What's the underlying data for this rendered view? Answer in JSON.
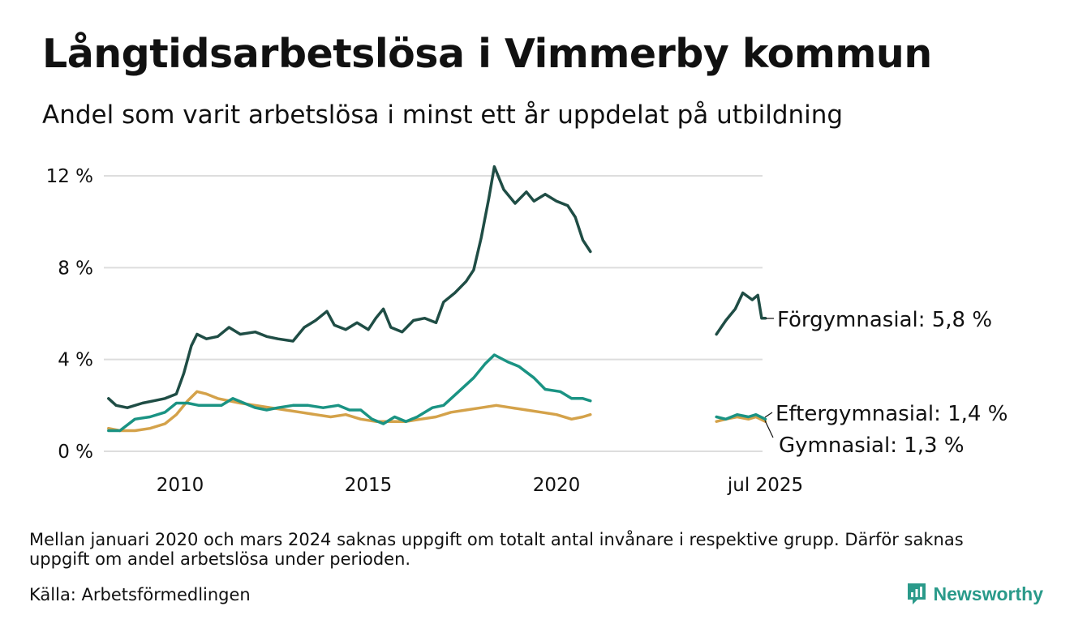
{
  "header": {
    "title": "Långtidsarbetslösa i Vimmerby kommun",
    "subtitle": "Andel som varit arbetslösa i minst ett år uppdelat på utbildning"
  },
  "footer": {
    "note": "Mellan januari 2020 och mars 2024 saknas uppgift om totalt antal invånare i respektive grupp. Därför saknas uppgift om andel arbetslösa under perioden.",
    "source": "Källa: Arbetsförmedlingen",
    "brand": "Newsworthy"
  },
  "colors": {
    "forgymnasial": "#1f4d45",
    "eftergymnasial": "#1a9383",
    "gymnasial": "#d4a24a",
    "grid": "#dddddd",
    "text": "#111111"
  },
  "chart_data": {
    "type": "line",
    "x_ticks": [
      "2010",
      "2015",
      "2020",
      "jul 2025"
    ],
    "y_ticks": [
      "0 %",
      "4 %",
      "8 %",
      "12 %"
    ],
    "ylim": [
      0,
      12
    ],
    "grid": true,
    "series": [
      {
        "name": "Förgymnasial",
        "label": "Förgymnasial: 5,8 %",
        "segments": [
          [
            [
              2008.1,
              2.3
            ],
            [
              2008.3,
              2.0
            ],
            [
              2008.6,
              1.9
            ],
            [
              2009.0,
              2.1
            ],
            [
              2009.3,
              2.2
            ],
            [
              2009.6,
              2.3
            ],
            [
              2009.9,
              2.5
            ],
            [
              2010.1,
              3.4
            ],
            [
              2010.3,
              4.6
            ],
            [
              2010.45,
              5.1
            ],
            [
              2010.7,
              4.9
            ],
            [
              2011.0,
              5.0
            ],
            [
              2011.3,
              5.4
            ],
            [
              2011.6,
              5.1
            ],
            [
              2012.0,
              5.2
            ],
            [
              2012.3,
              5.0
            ],
            [
              2012.6,
              4.9
            ],
            [
              2013.0,
              4.8
            ],
            [
              2013.3,
              5.4
            ],
            [
              2013.6,
              5.7
            ],
            [
              2013.9,
              6.1
            ],
            [
              2014.1,
              5.5
            ],
            [
              2014.4,
              5.3
            ],
            [
              2014.7,
              5.6
            ],
            [
              2015.0,
              5.3
            ],
            [
              2015.2,
              5.8
            ],
            [
              2015.4,
              6.2
            ],
            [
              2015.6,
              5.4
            ],
            [
              2015.9,
              5.2
            ],
            [
              2016.2,
              5.7
            ],
            [
              2016.5,
              5.8
            ],
            [
              2016.8,
              5.6
            ],
            [
              2017.0,
              6.5
            ],
            [
              2017.3,
              6.9
            ],
            [
              2017.6,
              7.4
            ],
            [
              2017.8,
              7.9
            ],
            [
              2018.0,
              9.3
            ],
            [
              2018.2,
              11.0
            ],
            [
              2018.35,
              12.4
            ],
            [
              2018.6,
              11.4
            ],
            [
              2018.9,
              10.8
            ],
            [
              2019.2,
              11.3
            ],
            [
              2019.4,
              10.9
            ],
            [
              2019.7,
              11.2
            ],
            [
              2020.0,
              10.9
            ],
            [
              2020.3,
              10.7
            ],
            [
              2020.5,
              10.2
            ],
            [
              2020.7,
              9.2
            ],
            [
              2020.9,
              8.7
            ]
          ],
          [
            [
              2024.25,
              5.1
            ],
            [
              2024.5,
              5.7
            ],
            [
              2024.75,
              6.2
            ],
            [
              2024.95,
              6.9
            ],
            [
              2025.2,
              6.6
            ],
            [
              2025.35,
              6.8
            ],
            [
              2025.45,
              5.8
            ],
            [
              2025.55,
              5.8
            ]
          ]
        ]
      },
      {
        "name": "Eftergymnasial",
        "label": "Eftergymnasial: 1,4 %",
        "segments": [
          [
            [
              2008.1,
              0.9
            ],
            [
              2008.4,
              0.9
            ],
            [
              2008.8,
              1.4
            ],
            [
              2009.2,
              1.5
            ],
            [
              2009.6,
              1.7
            ],
            [
              2009.9,
              2.1
            ],
            [
              2010.2,
              2.1
            ],
            [
              2010.5,
              2.0
            ],
            [
              2010.8,
              2.0
            ],
            [
              2011.1,
              2.0
            ],
            [
              2011.4,
              2.3
            ],
            [
              2011.7,
              2.1
            ],
            [
              2012.0,
              1.9
            ],
            [
              2012.3,
              1.8
            ],
            [
              2012.6,
              1.9
            ],
            [
              2013.0,
              2.0
            ],
            [
              2013.4,
              2.0
            ],
            [
              2013.8,
              1.9
            ],
            [
              2014.2,
              2.0
            ],
            [
              2014.5,
              1.8
            ],
            [
              2014.8,
              1.8
            ],
            [
              2015.1,
              1.4
            ],
            [
              2015.4,
              1.2
            ],
            [
              2015.7,
              1.5
            ],
            [
              2016.0,
              1.3
            ],
            [
              2016.3,
              1.5
            ],
            [
              2016.7,
              1.9
            ],
            [
              2017.0,
              2.0
            ],
            [
              2017.4,
              2.6
            ],
            [
              2017.8,
              3.2
            ],
            [
              2018.1,
              3.8
            ],
            [
              2018.35,
              4.2
            ],
            [
              2018.7,
              3.9
            ],
            [
              2019.0,
              3.7
            ],
            [
              2019.4,
              3.2
            ],
            [
              2019.7,
              2.7
            ],
            [
              2020.1,
              2.6
            ],
            [
              2020.4,
              2.3
            ],
            [
              2020.7,
              2.3
            ],
            [
              2020.9,
              2.2
            ]
          ],
          [
            [
              2024.25,
              1.5
            ],
            [
              2024.5,
              1.4
            ],
            [
              2024.8,
              1.6
            ],
            [
              2025.1,
              1.5
            ],
            [
              2025.3,
              1.6
            ],
            [
              2025.55,
              1.4
            ]
          ]
        ]
      },
      {
        "name": "Gymnasial",
        "label": "Gymnasial: 1,3 %",
        "segments": [
          [
            [
              2008.1,
              1.0
            ],
            [
              2008.4,
              0.9
            ],
            [
              2008.8,
              0.9
            ],
            [
              2009.2,
              1.0
            ],
            [
              2009.6,
              1.2
            ],
            [
              2009.9,
              1.6
            ],
            [
              2010.2,
              2.2
            ],
            [
              2010.45,
              2.6
            ],
            [
              2010.7,
              2.5
            ],
            [
              2011.0,
              2.3
            ],
            [
              2011.3,
              2.2
            ],
            [
              2011.6,
              2.1
            ],
            [
              2012.0,
              2.0
            ],
            [
              2012.4,
              1.9
            ],
            [
              2012.8,
              1.8
            ],
            [
              2013.2,
              1.7
            ],
            [
              2013.6,
              1.6
            ],
            [
              2014.0,
              1.5
            ],
            [
              2014.4,
              1.6
            ],
            [
              2014.8,
              1.4
            ],
            [
              2015.2,
              1.3
            ],
            [
              2015.6,
              1.3
            ],
            [
              2016.0,
              1.3
            ],
            [
              2016.4,
              1.4
            ],
            [
              2016.8,
              1.5
            ],
            [
              2017.2,
              1.7
            ],
            [
              2017.6,
              1.8
            ],
            [
              2018.0,
              1.9
            ],
            [
              2018.4,
              2.0
            ],
            [
              2018.8,
              1.9
            ],
            [
              2019.2,
              1.8
            ],
            [
              2019.6,
              1.7
            ],
            [
              2020.0,
              1.6
            ],
            [
              2020.4,
              1.4
            ],
            [
              2020.7,
              1.5
            ],
            [
              2020.9,
              1.6
            ]
          ],
          [
            [
              2024.25,
              1.3
            ],
            [
              2024.5,
              1.4
            ],
            [
              2024.8,
              1.5
            ],
            [
              2025.1,
              1.4
            ],
            [
              2025.3,
              1.5
            ],
            [
              2025.55,
              1.3
            ]
          ]
        ]
      }
    ]
  }
}
